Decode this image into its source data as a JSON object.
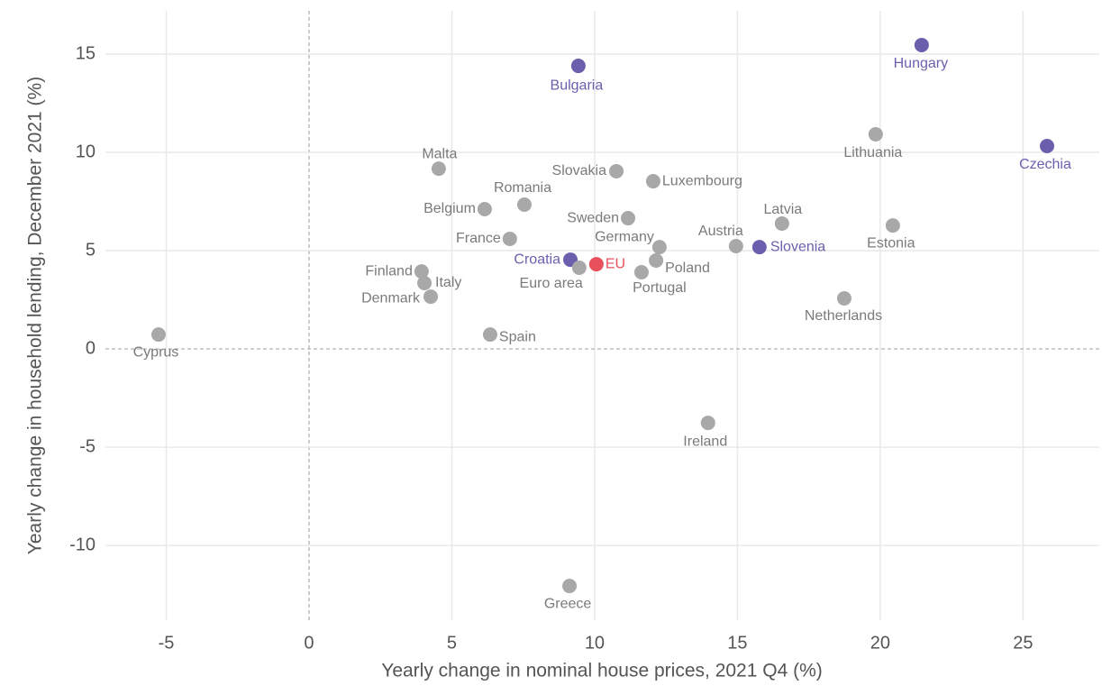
{
  "chart_data": {
    "type": "scatter",
    "xlabel": "Yearly change in nominal house prices, 2021 Q4 (%)",
    "ylabel": "Yearly change in household lending, December 2021 (%)",
    "labels": [
      "Cyprus",
      "Malta",
      "Bulgaria",
      "Hungary",
      "Czechia",
      "Lithuania",
      "Slovakia",
      "Luxembourg",
      "Romania",
      "Belgium",
      "Sweden",
      "Latvia",
      "Estonia",
      "France",
      "Germany",
      "Austria",
      "Slovenia",
      "Croatia",
      "EU",
      "Euro area",
      "Poland",
      "Portugal",
      "Finland",
      "Italy",
      "Denmark",
      "Netherlands",
      "Spain",
      "Ireland",
      "Greece"
    ],
    "x": [
      -5.27,
      4.54,
      9.43,
      21.45,
      25.84,
      19.84,
      10.76,
      12.05,
      7.54,
      6.15,
      11.17,
      16.56,
      20.44,
      7.03,
      12.27,
      14.95,
      15.77,
      9.15,
      10.06,
      9.46,
      12.15,
      11.64,
      3.94,
      4.04,
      4.26,
      18.74,
      6.34,
      13.97,
      9.12
    ],
    "values": [
      0.73,
      9.17,
      14.4,
      15.46,
      10.32,
      10.92,
      9.04,
      8.53,
      7.34,
      7.11,
      6.65,
      6.38,
      6.28,
      5.6,
      5.18,
      5.23,
      5.18,
      4.54,
      4.31,
      4.13,
      4.5,
      3.9,
      3.94,
      3.35,
      2.66,
      2.57,
      0.73,
      -3.76,
      -12.06
    ],
    "colors": [
      "#a8a8a8",
      "#a8a8a8",
      "#6b5fad",
      "#6b5fad",
      "#6b5fad",
      "#a8a8a8",
      "#a8a8a8",
      "#a8a8a8",
      "#a8a8a8",
      "#a8a8a8",
      "#a8a8a8",
      "#a8a8a8",
      "#a8a8a8",
      "#a8a8a8",
      "#a8a8a8",
      "#a8a8a8",
      "#6b5fad",
      "#6b5fad",
      "#e8505b",
      "#a8a8a8",
      "#a8a8a8",
      "#a8a8a8",
      "#a8a8a8",
      "#a8a8a8",
      "#a8a8a8",
      "#a8a8a8",
      "#a8a8a8",
      "#a8a8a8",
      "#a8a8a8"
    ],
    "label_colors": [
      "#7a7a7a",
      "#7a7a7a",
      "#6b5fad",
      "#6b5fad",
      "#6b5fad",
      "#7a7a7a",
      "#7a7a7a",
      "#7a7a7a",
      "#7a7a7a",
      "#7a7a7a",
      "#7a7a7a",
      "#7a7a7a",
      "#7a7a7a",
      "#7a7a7a",
      "#7a7a7a",
      "#7a7a7a",
      "#6b5fad",
      "#6b5fad",
      "#e8505b",
      "#7a7a7a",
      "#7a7a7a",
      "#7a7a7a",
      "#7a7a7a",
      "#7a7a7a",
      "#7a7a7a",
      "#7a7a7a",
      "#7a7a7a",
      "#7a7a7a",
      "#7a7a7a"
    ],
    "xlim": [
      -7.13,
      27.67
    ],
    "ylim": [
      -13.8,
      17.2
    ],
    "xticks": [
      -5,
      0,
      5,
      10,
      15,
      20,
      25
    ],
    "yticks": [
      -10,
      -5,
      0,
      5,
      10,
      15
    ],
    "grid": true
  }
}
